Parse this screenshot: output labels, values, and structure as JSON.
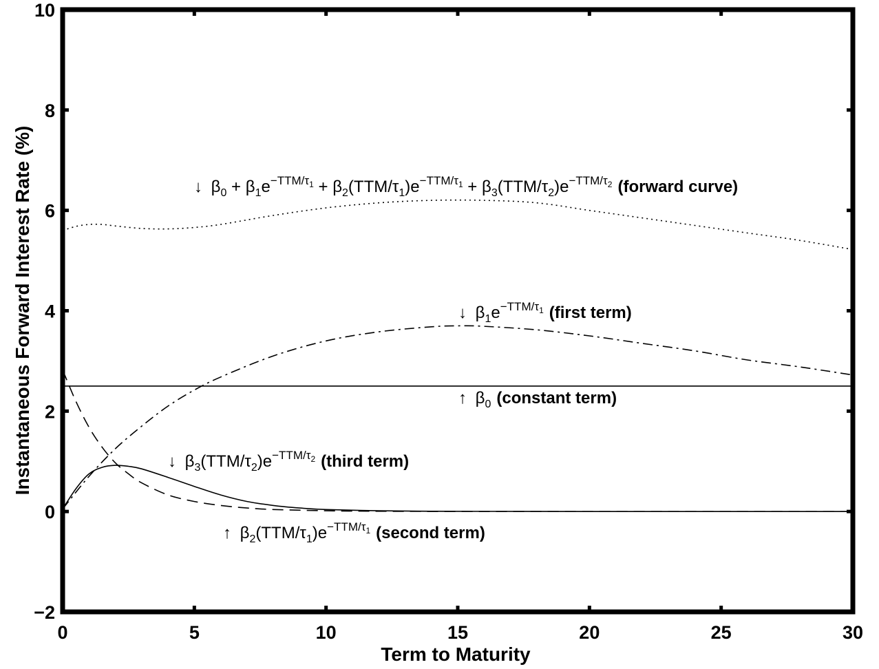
{
  "chart_data": {
    "type": "line",
    "xlabel": "Term to Maturity",
    "ylabel": "Instantaneous Forward Interest Rate (%)",
    "xlim": [
      0,
      30
    ],
    "ylim": [
      -2,
      10
    ],
    "xticks": [
      "0",
      "5",
      "10",
      "15",
      "20",
      "25",
      "30"
    ],
    "yticks": [
      "−2",
      "0",
      "2",
      "4",
      "6",
      "8",
      "10"
    ],
    "grid": false,
    "series": [
      {
        "style": "dotted",
        "x": [
          0,
          0.5,
          1,
          1.5,
          2,
          3,
          4,
          5,
          6,
          8,
          10,
          12,
          14,
          16,
          18,
          20,
          22,
          24,
          26,
          28,
          30
        ],
        "y": [
          5.6,
          5.68,
          5.72,
          5.72,
          5.69,
          5.64,
          5.63,
          5.66,
          5.72,
          5.9,
          6.05,
          6.15,
          6.2,
          6.2,
          6.15,
          6.0,
          5.85,
          5.7,
          5.55,
          5.4,
          5.22
        ]
      },
      {
        "style": "dashdot",
        "x": [
          0,
          1,
          2,
          3,
          4,
          5,
          6,
          8,
          10,
          12,
          14,
          15,
          16,
          18,
          20,
          22,
          24,
          26,
          28,
          30
        ],
        "y": [
          0.05,
          0.7,
          1.25,
          1.7,
          2.1,
          2.42,
          2.68,
          3.1,
          3.4,
          3.58,
          3.68,
          3.7,
          3.69,
          3.62,
          3.5,
          3.35,
          3.2,
          3.02,
          2.88,
          2.72
        ]
      },
      {
        "style": "solid",
        "x": [
          0,
          30
        ],
        "y": [
          2.5,
          2.5
        ]
      },
      {
        "style": "solid",
        "x": [
          0,
          0.5,
          1,
          1.5,
          2,
          2.5,
          3,
          4,
          5,
          6,
          7,
          8,
          9,
          10,
          12,
          14,
          16,
          20,
          25,
          30
        ],
        "y": [
          0.05,
          0.45,
          0.75,
          0.88,
          0.92,
          0.9,
          0.85,
          0.68,
          0.5,
          0.33,
          0.2,
          0.12,
          0.07,
          0.04,
          0.015,
          0.005,
          0.002,
          0,
          0,
          0
        ]
      },
      {
        "style": "dashed",
        "x": [
          0,
          0.5,
          1,
          1.5,
          2,
          2.5,
          3,
          4,
          5,
          6,
          7,
          8,
          10,
          12,
          15,
          20,
          25,
          30
        ],
        "y": [
          2.82,
          2.2,
          1.68,
          1.28,
          0.97,
          0.75,
          0.57,
          0.33,
          0.2,
          0.12,
          0.07,
          0.04,
          0.015,
          0.005,
          0.001,
          0,
          0,
          0
        ]
      }
    ],
    "annotations": {
      "forward_curve": {
        "arrow": "↓",
        "text": "β_0 + β_1e^{−TTM/τ_1} + β_2(TTM/τ_1)e^{−TTM/τ_1} + β_3(TTM/τ_2)e^{−TTM/τ_2}",
        "label": "(forward curve)"
      },
      "first_term": {
        "arrow": "↓",
        "text": "β_1e^{−TTM/τ_1}",
        "label": "(first term)"
      },
      "constant_term": {
        "arrow": "↑",
        "text": "β_0",
        "label": "(constant term)"
      },
      "third_term": {
        "arrow": "↓",
        "text": "β_3(TTM/τ_2)e^{−TTM/τ_2}",
        "label": "(third term)"
      },
      "second_term": {
        "arrow": "↑",
        "text": "β_2(TTM/τ_1)e^{−TTM/τ_1}",
        "label": "(second term)"
      }
    },
    "symbols": {
      "beta": "β",
      "tau": "τ",
      "minus_ttm": "−TTM/",
      "ttm": "TTM/",
      "plus": " + ",
      "open": "(",
      "close": ")",
      "e": "e",
      "sub0": "0",
      "sub1": "1",
      "sub2": "2",
      "sub3": "3"
    }
  }
}
